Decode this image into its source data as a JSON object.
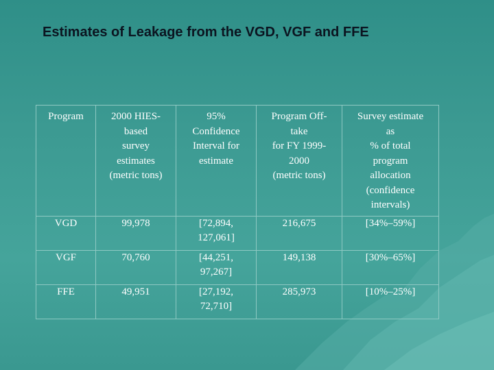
{
  "slide": {
    "title": "Estimates of Leakage from the VGD, VGF and FFE"
  },
  "table": {
    "headers": [
      "Program",
      "2000 HIES-based survey estimates (metric tons)",
      "95% Confidence Interval for estimate",
      "Program Off-take for FY 1999-2000 (metric tons)",
      "Survey estimate as % of total program allocation (confidence intervals)"
    ],
    "header_lines": {
      "program": [
        "Program"
      ],
      "hies": [
        "2000 HIES-",
        "based",
        "survey",
        "estimates",
        "(metric tons)"
      ],
      "ci": [
        "95%",
        "Confidence",
        "Interval for",
        "estimate"
      ],
      "offtake": [
        "Program Off-",
        "take",
        "for FY 1999-",
        "2000",
        "(metric tons)"
      ],
      "share": [
        "Survey estimate",
        "as",
        "% of total",
        "program",
        "allocation",
        "(confidence",
        "intervals)"
      ]
    },
    "rows": [
      {
        "program": "VGD",
        "hies": "99,978",
        "ci_line1": "[72,894,",
        "ci_line2": "127,061]",
        "offtake": "216,675",
        "share": "[34%–59%]"
      },
      {
        "program": "VGF",
        "hies": "70,760",
        "ci_line1": "[44,251,",
        "ci_line2": "97,267]",
        "offtake": "149,138",
        "share": "[30%–65%]"
      },
      {
        "program": "FFE",
        "hies": "49,951",
        "ci_line1": "[27,192,",
        "ci_line2": "72,710]",
        "offtake": "285,973",
        "share": "[10%–25%]"
      }
    ]
  },
  "colors": {
    "background": "#3c9a92",
    "title_text": "#0b1420",
    "table_text": "#ffffff",
    "grid_lines": "#8fc9c3",
    "iceberg": "#5fb3ab"
  }
}
